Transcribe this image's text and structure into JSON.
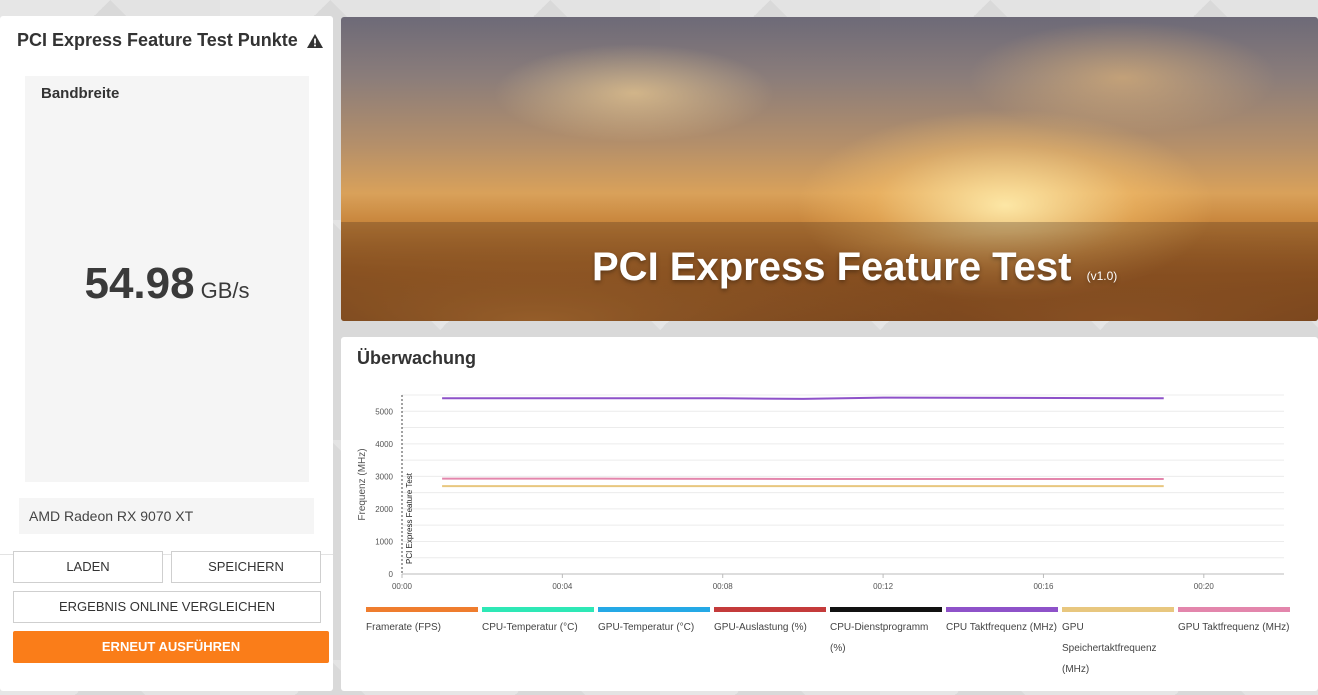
{
  "left_panel": {
    "title": "PCI Express Feature Test Punkte",
    "bandwidth_label": "Bandbreite",
    "bandwidth_value": "54.98",
    "bandwidth_unit": "GB/s",
    "gpu_name": "AMD Radeon RX 9070 XT",
    "buttons": {
      "load": "LADEN",
      "save": "SPEICHERN",
      "compare": "ERGEBNIS ONLINE VERGLEICHEN",
      "run_again": "ERNEUT AUSFÜHREN"
    },
    "accent_color": "#fa7d19"
  },
  "banner": {
    "title": "PCI Express Feature Test",
    "version": "(v1.0)"
  },
  "monitor": {
    "title": "Überwachung"
  },
  "chart_data": {
    "type": "line",
    "ylabel": "Frequenz (MHz)",
    "xlabel": "",
    "ylim": [
      0,
      5500
    ],
    "yticks": [
      0,
      1000,
      2000,
      3000,
      4000,
      5000
    ],
    "xticks": [
      "00:00",
      "00:04",
      "00:08",
      "00:12",
      "00:16",
      "00:20"
    ],
    "x_range_seconds": [
      0,
      1320
    ],
    "marker": {
      "label": "PCI Express Feature Test",
      "x_seconds": 0
    },
    "grid": true,
    "legend_position": "bottom",
    "legend": [
      {
        "name": "Framerate (FPS)",
        "color": "#ef7d2e"
      },
      {
        "name": "CPU-Temperatur (°C)",
        "color": "#2ee8b6"
      },
      {
        "name": "GPU-Temperatur (°C)",
        "color": "#25a9e6"
      },
      {
        "name": "GPU-Auslastung (%)",
        "color": "#c43b3b"
      },
      {
        "name": "CPU-Dienstprogramm (%)",
        "color": "#111111"
      },
      {
        "name": "CPU Taktfrequenz (MHz)",
        "color": "#8e52c9"
      },
      {
        "name": "GPU Speichertaktfrequenz (MHz)",
        "color": "#e8c77f"
      },
      {
        "name": "GPU Taktfrequenz (MHz)",
        "color": "#e386ac"
      }
    ],
    "series": [
      {
        "name": "CPU Taktfrequenz (MHz)",
        "color": "#8e52c9",
        "x_seconds": [
          60,
          240,
          480,
          600,
          660,
          720,
          1140
        ],
        "values": [
          5400,
          5400,
          5400,
          5380,
          5400,
          5420,
          5400
        ]
      },
      {
        "name": "GPU Taktfrequenz (MHz)",
        "color": "#e386ac",
        "x_seconds": [
          60,
          300,
          600,
          900,
          1140
        ],
        "values": [
          2930,
          2930,
          2920,
          2920,
          2920
        ]
      },
      {
        "name": "GPU Speichertaktfrequenz (MHz)",
        "color": "#e8c77f",
        "x_seconds": [
          60,
          1140
        ],
        "values": [
          2700,
          2700
        ]
      }
    ]
  }
}
